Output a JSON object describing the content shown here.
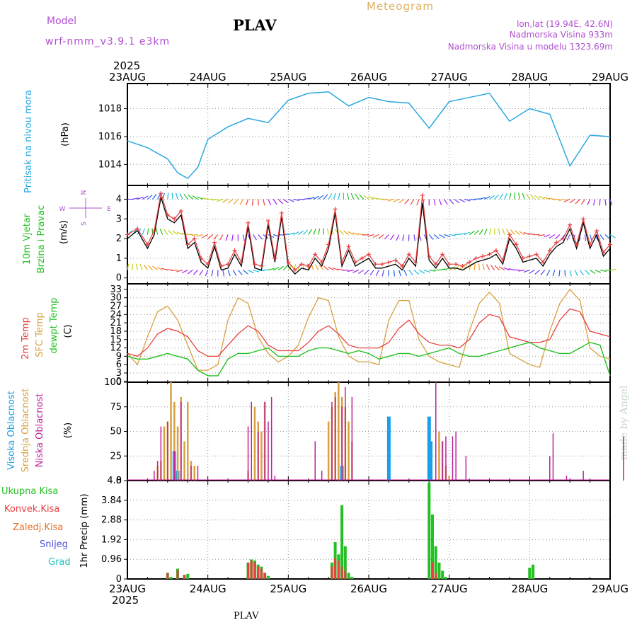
{
  "header": {
    "model_label": "Model",
    "model_name": "wrf-nmm_v3.9.1  e3km",
    "station": "PLAV",
    "product": "Meteogram",
    "lonlat": "lon,lat (19.94E, 42.6N)",
    "elevation": "Nadmorska Visina 933m",
    "model_elevation": "Nadmorska Visina u modelu 1323.69m",
    "year_top": "2025",
    "year_bottom": "2025",
    "footer_station": "PLAV",
    "credit": "made by Angel"
  },
  "colors": {
    "pressure": "#2aa8e0",
    "wind_speed": "#000000",
    "wind_gust": "#e84040",
    "temp2m": "#e84040",
    "sfc_temp": "#d8a040",
    "dewpt": "#22c022",
    "cloud_high": "#1aa0e8",
    "cloud_mid": "#d8a040",
    "cloud_low": "#c0209a",
    "precip_total": "#22c022",
    "precip_conv": "#e84040",
    "precip_frz": "#e87028",
    "snow": "#5050e0",
    "hail": "#20c0c0",
    "compass": "#b050d0",
    "credit": "#c8d8c8"
  },
  "chart_data": [
    {
      "type": "line",
      "panel": "pressure",
      "title": "Pritisak na nivou mora",
      "ylabel": "(hPa)",
      "ylim": [
        1012.5,
        1019.8
      ],
      "yticks": [
        1014,
        1016,
        1018
      ],
      "x_days": [
        "23AUG",
        "24AUG",
        "25AUG",
        "26AUG",
        "27AUG",
        "28AUG",
        "29AUG"
      ],
      "x_hours": [
        0,
        6,
        12,
        15,
        18,
        21,
        24,
        30,
        36,
        42,
        48,
        54,
        60,
        66,
        72,
        78,
        84,
        90,
        96,
        102,
        108,
        114,
        120,
        126,
        132,
        138,
        144
      ],
      "series": [
        {
          "name": "MSLP",
          "values": [
            1015.7,
            1015.2,
            1014.4,
            1013.4,
            1013.0,
            1013.8,
            1015.8,
            1016.7,
            1017.3,
            1017.0,
            1018.6,
            1019.1,
            1019.2,
            1018.2,
            1018.8,
            1018.5,
            1018.4,
            1016.6,
            1018.5,
            1018.8,
            1019.1,
            1017.1,
            1018.0,
            1017.6,
            1013.9,
            1016.1,
            1016.0
          ]
        }
      ]
    },
    {
      "type": "line",
      "panel": "wind",
      "title": "10m Vjetar",
      "subtitle": "Brzina i Pravac",
      "ylabel": "(m/s)",
      "ylim": [
        -0.3,
        4.7
      ],
      "yticks": [
        0,
        1,
        2,
        3,
        4
      ],
      "compass": {
        "n": "N",
        "s": "S",
        "e": "E",
        "w": "W"
      },
      "x_hours": [
        0,
        3,
        6,
        8,
        10,
        12,
        14,
        16,
        18,
        20,
        22,
        24,
        26,
        28,
        30,
        32,
        34,
        36,
        38,
        40,
        42,
        44,
        46,
        48,
        50,
        52,
        54,
        56,
        58,
        60,
        62,
        64,
        66,
        68,
        70,
        72,
        74,
        76,
        78,
        80,
        82,
        84,
        86,
        88,
        90,
        92,
        94,
        96,
        98,
        100,
        102,
        104,
        106,
        108,
        110,
        112,
        114,
        116,
        118,
        120,
        122,
        124,
        126,
        128,
        130,
        132,
        134,
        136,
        138,
        140,
        142,
        144
      ],
      "series": [
        {
          "name": "speed",
          "values": [
            2.0,
            2.4,
            1.5,
            2.2,
            4.1,
            3.0,
            2.8,
            3.2,
            1.5,
            1.8,
            0.8,
            0.5,
            1.6,
            0.4,
            0.5,
            1.2,
            0.6,
            2.6,
            0.5,
            0.4,
            2.7,
            0.8,
            3.1,
            0.6,
            0.2,
            0.5,
            0.4,
            1.0,
            0.6,
            1.5,
            3.3,
            0.6,
            1.4,
            0.6,
            0.8,
            1.0,
            0.5,
            0.5,
            0.6,
            0.7,
            0.4,
            1.0,
            0.6,
            3.8,
            0.9,
            0.5,
            1.0,
            0.5,
            0.5,
            0.4,
            0.6,
            0.8,
            0.9,
            1.0,
            1.2,
            0.7,
            2.0,
            1.5,
            0.8,
            0.9,
            1.0,
            0.6,
            1.2,
            1.6,
            1.8,
            2.5,
            1.5,
            2.8,
            1.5,
            2.2,
            1.1,
            1.5
          ]
        },
        {
          "name": "gust",
          "values": [
            2.2,
            2.5,
            1.7,
            2.4,
            4.3,
            3.2,
            3.0,
            3.4,
            1.7,
            2.0,
            1.0,
            0.7,
            1.8,
            0.6,
            0.7,
            1.4,
            0.8,
            2.8,
            0.7,
            0.6,
            2.9,
            1.0,
            3.3,
            0.8,
            0.4,
            0.7,
            0.6,
            1.2,
            0.8,
            1.7,
            3.5,
            0.8,
            1.6,
            0.8,
            1.0,
            1.2,
            0.7,
            0.7,
            0.8,
            0.9,
            0.6,
            1.2,
            0.8,
            4.2,
            1.1,
            0.7,
            1.2,
            0.7,
            0.7,
            0.6,
            0.8,
            1.0,
            1.1,
            1.2,
            1.4,
            0.9,
            2.2,
            1.7,
            1.0,
            1.1,
            1.2,
            0.8,
            1.4,
            1.8,
            2.0,
            2.7,
            1.7,
            3.0,
            1.7,
            2.4,
            1.3,
            1.7
          ]
        }
      ]
    },
    {
      "type": "line",
      "panel": "temperature",
      "titles": [
        "2m Temp",
        "SFC Temp",
        "dewpt Temp"
      ],
      "ylabel": "(C)",
      "ylim": [
        -0.3,
        35
      ],
      "yticks": [
        0,
        3,
        6,
        9,
        12,
        15,
        18,
        21,
        24,
        27,
        30,
        33
      ],
      "x_hours": [
        0,
        3,
        6,
        9,
        12,
        15,
        18,
        21,
        24,
        27,
        30,
        33,
        36,
        39,
        42,
        45,
        48,
        51,
        54,
        57,
        60,
        63,
        66,
        69,
        72,
        75,
        78,
        81,
        84,
        87,
        90,
        93,
        96,
        99,
        102,
        105,
        108,
        111,
        114,
        117,
        120,
        123,
        126,
        129,
        132,
        135,
        138,
        141,
        144
      ],
      "series": [
        {
          "name": "2m Temp",
          "values": [
            10,
            9,
            12,
            17,
            19,
            18,
            16,
            11,
            9,
            9,
            13,
            17,
            20,
            18,
            13,
            11,
            11,
            11,
            14,
            18,
            20,
            17,
            13,
            12,
            12,
            12,
            14,
            19,
            22,
            17,
            14,
            13,
            13,
            12,
            15,
            21,
            24,
            23,
            16,
            15,
            14,
            14,
            15,
            22,
            26,
            25,
            18,
            17,
            16
          ]
        },
        {
          "name": "SFC Temp",
          "values": [
            10,
            6,
            16,
            25,
            27,
            22,
            13,
            4,
            4,
            6,
            22,
            30,
            28,
            16,
            10,
            7,
            9,
            13,
            23,
            30,
            29,
            16,
            9,
            7,
            7,
            6,
            22,
            29,
            29,
            15,
            9,
            7,
            6,
            5,
            18,
            28,
            32,
            28,
            10,
            8,
            6,
            5,
            18,
            28,
            33,
            29,
            12,
            9,
            8
          ]
        },
        {
          "name": "dewpt Temp",
          "values": [
            9,
            8,
            8,
            9,
            10,
            9,
            8,
            4,
            2,
            2,
            8,
            10,
            10,
            11,
            12,
            9,
            9,
            9,
            11,
            12,
            12,
            11,
            10,
            11,
            10,
            8,
            9,
            10,
            10,
            9,
            10,
            11,
            12,
            10,
            9,
            9,
            10,
            11,
            12,
            13,
            14,
            12,
            11,
            10,
            10,
            12,
            14,
            13,
            2
          ]
        }
      ]
    },
    {
      "type": "bar",
      "panel": "clouds",
      "titles": [
        "Visoka Oblacnost",
        "Srednja Oblacnost",
        "Niska Oblacnost"
      ],
      "ylabel": "(%)",
      "ylim": [
        0,
        100
      ],
      "yticks": [
        0,
        25,
        50,
        75,
        100
      ],
      "series": [
        {
          "name": "Visoka",
          "x_hours": [
            14,
            15,
            64,
            78,
            90,
            90.5
          ],
          "values": [
            30,
            10,
            15,
            65,
            65,
            40
          ]
        },
        {
          "name": "Srednja",
          "x_hours": [
            9,
            10,
            11,
            12,
            13,
            14,
            15,
            16,
            17,
            18,
            19,
            20,
            36,
            38,
            39,
            40,
            41,
            60,
            61,
            62,
            63,
            64,
            65,
            66,
            67,
            93,
            94,
            95,
            96
          ],
          "values": [
            15,
            20,
            55,
            60,
            100,
            80,
            55,
            85,
            40,
            80,
            20,
            15,
            10,
            75,
            60,
            50,
            80,
            60,
            75,
            90,
            100,
            85,
            75,
            60,
            40,
            50,
            40,
            15,
            5
          ]
        },
        {
          "name": "Niska",
          "x_hours": [
            8,
            9,
            10,
            12,
            14,
            16,
            19,
            21,
            36,
            37,
            39,
            41,
            42,
            43,
            44,
            56,
            58,
            61,
            62,
            64,
            65,
            67,
            92,
            94,
            95,
            97,
            98,
            101,
            126,
            127,
            131,
            136,
            148
          ],
          "values": [
            10,
            20,
            55,
            60,
            30,
            80,
            15,
            15,
            55,
            80,
            50,
            80,
            60,
            85,
            5,
            40,
            10,
            80,
            85,
            75,
            95,
            85,
            100,
            40,
            45,
            45,
            50,
            25,
            25,
            48,
            5,
            10,
            45
          ]
        }
      ]
    },
    {
      "type": "bar",
      "panel": "precip",
      "titles": [
        "Ukupna Kisa",
        "Konvek.Kisa",
        "Zaledj.Kisa",
        "Snijeg",
        "Grad"
      ],
      "ylabel": "1hr Precip (mm)",
      "ylim": [
        0,
        4.8
      ],
      "yticks": [
        0,
        0.96,
        1.92,
        2.88,
        3.84,
        4.8
      ],
      "ytick_labels": [
        "0",
        "0.96",
        "1.92",
        "2.88",
        "3.84",
        "4.8"
      ],
      "series": [
        {
          "name": "Ukupna",
          "x_hours": [
            12,
            13,
            15,
            17,
            18,
            36,
            37,
            38,
            39,
            40,
            41,
            42,
            61,
            62,
            63,
            64,
            65,
            66,
            67,
            90,
            91,
            92,
            93,
            94,
            95,
            120,
            121
          ],
          "values": [
            0.3,
            0.1,
            0.5,
            0.2,
            0.25,
            0.8,
            0.95,
            0.9,
            0.7,
            0.6,
            0.3,
            0.15,
            0.8,
            1.8,
            1.2,
            3.6,
            1.6,
            0.3,
            0.1,
            4.7,
            3.15,
            1.6,
            0.8,
            0.4,
            0.1,
            0.55,
            0.7
          ]
        },
        {
          "name": "Konvek",
          "x_hours": [
            12,
            15,
            17,
            36,
            37,
            38,
            39,
            40,
            41,
            61,
            62,
            63,
            64,
            65,
            91,
            92
          ],
          "values": [
            0.3,
            0.45,
            0.2,
            0.8,
            0.9,
            0.8,
            0.6,
            0.5,
            0.3,
            0.6,
            1.0,
            0.9,
            0.6,
            0.4,
            0.8,
            0.3
          ]
        }
      ]
    }
  ]
}
